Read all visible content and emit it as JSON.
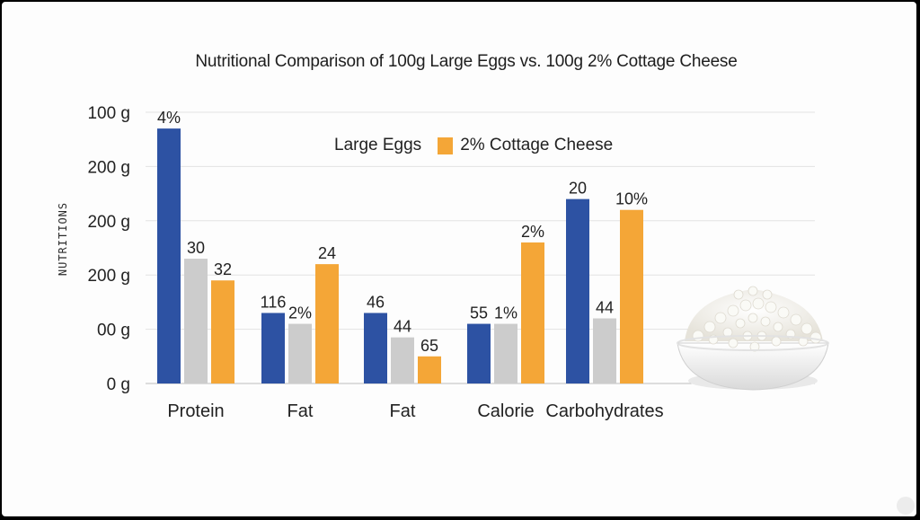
{
  "chart_data": {
    "type": "bar",
    "title": "Nutritional Comparison of 100g Large Eggs vs. 100g 2% Cottage Cheese",
    "ylabel": "NUTRITIONS",
    "xlabel": "",
    "y_ticks": [
      "100 g",
      "200 g",
      "200 g",
      "200 g",
      "00 g",
      "0 g"
    ],
    "ylim": [
      0,
      5
    ],
    "grid": true,
    "legend_position": "top-center",
    "categories": [
      "Protein",
      "Fat",
      "Fat",
      "Calorie",
      "Carbohydrates"
    ],
    "series": [
      {
        "name": "Large Eggs",
        "color": "#2d52a3",
        "values": [
          4.7,
          1.3,
          1.3,
          1.1,
          3.4
        ],
        "labels": [
          "4%",
          "116",
          "46",
          "55",
          "20"
        ]
      },
      {
        "name": "",
        "color": "#cccccc",
        "values": [
          2.3,
          1.1,
          0.85,
          1.1,
          1.2
        ],
        "labels": [
          "30",
          "2%",
          "44",
          "1%",
          "44"
        ]
      },
      {
        "name": "2% Cottage Cheese",
        "color": "#f4a637",
        "values": [
          1.9,
          2.2,
          0.5,
          2.6,
          3.2
        ],
        "labels": [
          "32",
          "24",
          "65",
          "2%",
          "10%"
        ]
      }
    ]
  },
  "legend": {
    "eggs": "Large Eggs",
    "cottage": "2% Cottage Cheese"
  },
  "decoration": {
    "image": "bowl-of-cottage-cheese"
  }
}
